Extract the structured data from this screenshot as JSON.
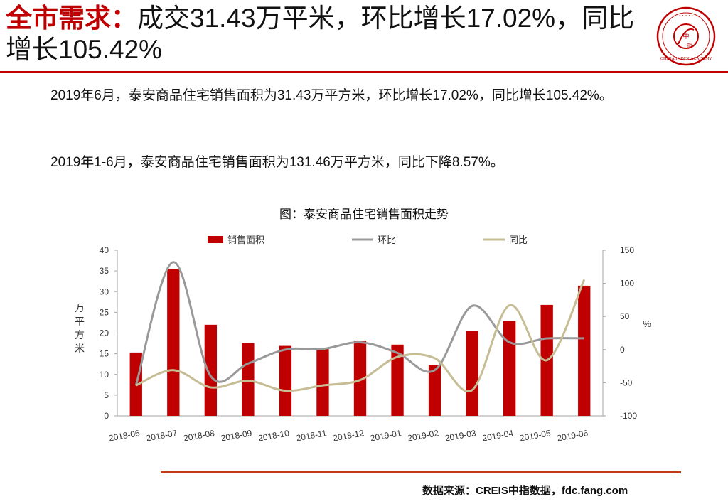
{
  "header": {
    "keyword": "全市需求：",
    "headline": "成交31.43万平米，环比增长17.02%，同比增长105.42%"
  },
  "logo": {
    "icon": "china-index-academy-seal",
    "text": "CHINA INDEX ACADEMY",
    "color": "#c00000"
  },
  "body": {
    "paragraph1": "2019年6月，泰安商品住宅销售面积为31.43万平方米，环比增长17.02%，同比增长105.42%。",
    "paragraph2": "2019年1-6月，泰安商品住宅销售面积为131.46万平方米，同比下降8.57%。"
  },
  "chart_title": "图：泰安商品住宅销售面积走势",
  "chart_data": {
    "type": "bar",
    "categories": [
      "2018-06",
      "2018-07",
      "2018-08",
      "2018-09",
      "2018-10",
      "2018-11",
      "2018-12",
      "2019-01",
      "2019-02",
      "2019-03",
      "2019-04",
      "2019-05",
      "2019-06"
    ],
    "series": [
      {
        "name": "销售面积",
        "type": "bar",
        "axis": "left",
        "color": "#c00000",
        "values": [
          15.3,
          35.5,
          22.0,
          17.6,
          16.9,
          16.3,
          18.2,
          17.2,
          12.3,
          20.5,
          22.9,
          26.8,
          31.43
        ]
      },
      {
        "name": "环比",
        "type": "line",
        "axis": "right",
        "color": "#999999",
        "values": [
          -54,
          132,
          -40,
          -21,
          0,
          1,
          11,
          -5,
          -31,
          66,
          11,
          17,
          17.02
        ]
      },
      {
        "name": "同比",
        "type": "line",
        "axis": "right",
        "color": "#c7bd95",
        "values": [
          -54,
          -31,
          -57,
          -47,
          -62,
          -54,
          -46,
          -11,
          -13,
          -61,
          67,
          -16,
          105.42
        ]
      }
    ],
    "left_axis": {
      "label": "万平方米",
      "ylim": [
        0,
        40
      ],
      "ticks": [
        0,
        5,
        10,
        15,
        20,
        25,
        30,
        35,
        40
      ]
    },
    "right_axis": {
      "label": "%",
      "ylim": [
        -100,
        150
      ],
      "ticks": [
        -100,
        -50,
        0,
        50,
        100,
        150
      ]
    },
    "legend_position": "top",
    "grid": false
  },
  "source": "数据来源：CREIS中指数据，fdc.fang.com"
}
